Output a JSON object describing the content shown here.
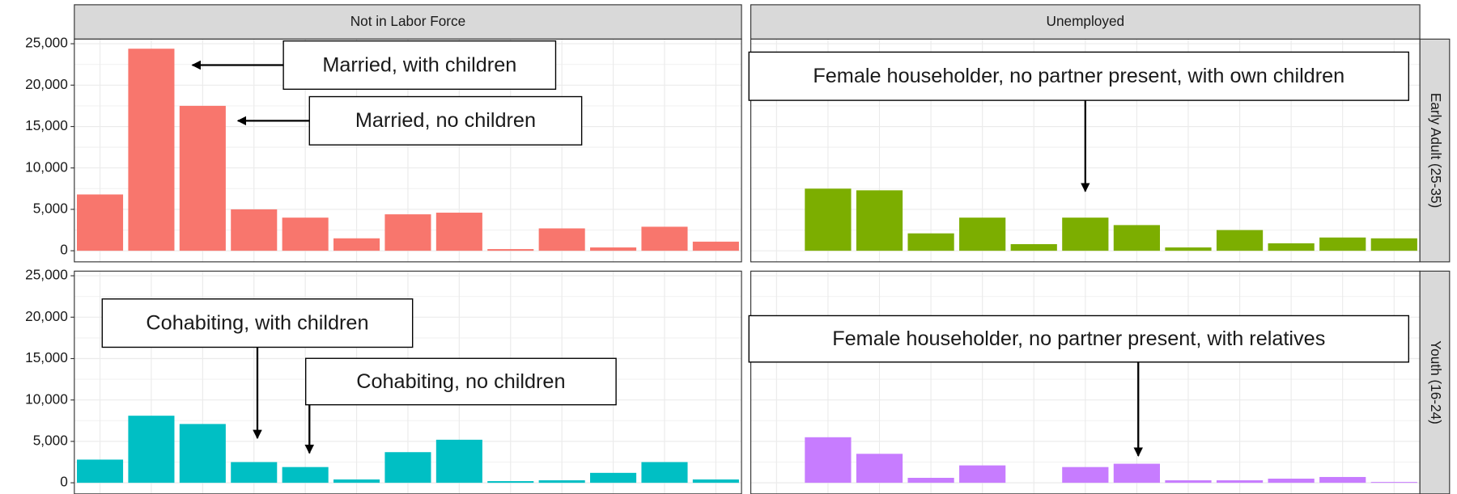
{
  "chart_data": {
    "type": "bar",
    "columns": [
      "Not in Labor Force",
      "Unemployed"
    ],
    "rows": [
      "Early Adult (25-35)",
      "Youth (16-24)"
    ],
    "categories": [
      null,
      null,
      null,
      null,
      null,
      null,
      null,
      null,
      null,
      null,
      null,
      null,
      null
    ],
    "ylim": [
      -1340,
      25560
    ],
    "yticks": [
      0,
      {
        "value": 5000,
        "label": "5,000"
      },
      {
        "value": 10000,
        "label": "10,000"
      },
      {
        "value": 15000,
        "label": "15,000"
      },
      {
        "value": 20000,
        "label": "20,000"
      },
      {
        "value": 25000,
        "label": "25,000"
      }
    ],
    "grid": true,
    "panels": [
      [
        {
          "color": "#F8766D",
          "values": [
            6800,
            24400,
            17500,
            5000,
            4000,
            1500,
            4400,
            4600,
            200,
            2700,
            400,
            2900,
            1100
          ]
        },
        {
          "color": "#7CAE00",
          "values": [
            null,
            7500,
            7300,
            2100,
            4000,
            800,
            4000,
            3100,
            400,
            2500,
            900,
            1600,
            1500
          ]
        }
      ],
      [
        {
          "color": "#00BFC4",
          "values": [
            2800,
            8100,
            7100,
            2500,
            1900,
            400,
            3700,
            5200,
            200,
            300,
            1200,
            2500,
            400
          ]
        },
        {
          "color": "#C77CFF",
          "values": [
            null,
            5500,
            3500,
            600,
            2100,
            null,
            1900,
            2300,
            300,
            300,
            500,
            700,
            100
          ]
        }
      ]
    ],
    "annotations": [
      "Married, with children",
      "Married, no children",
      "Female householder, no partner present, with own children",
      "Cohabiting, with children",
      "Cohabiting, no children",
      "Female householder, no partner present, with relatives"
    ]
  }
}
